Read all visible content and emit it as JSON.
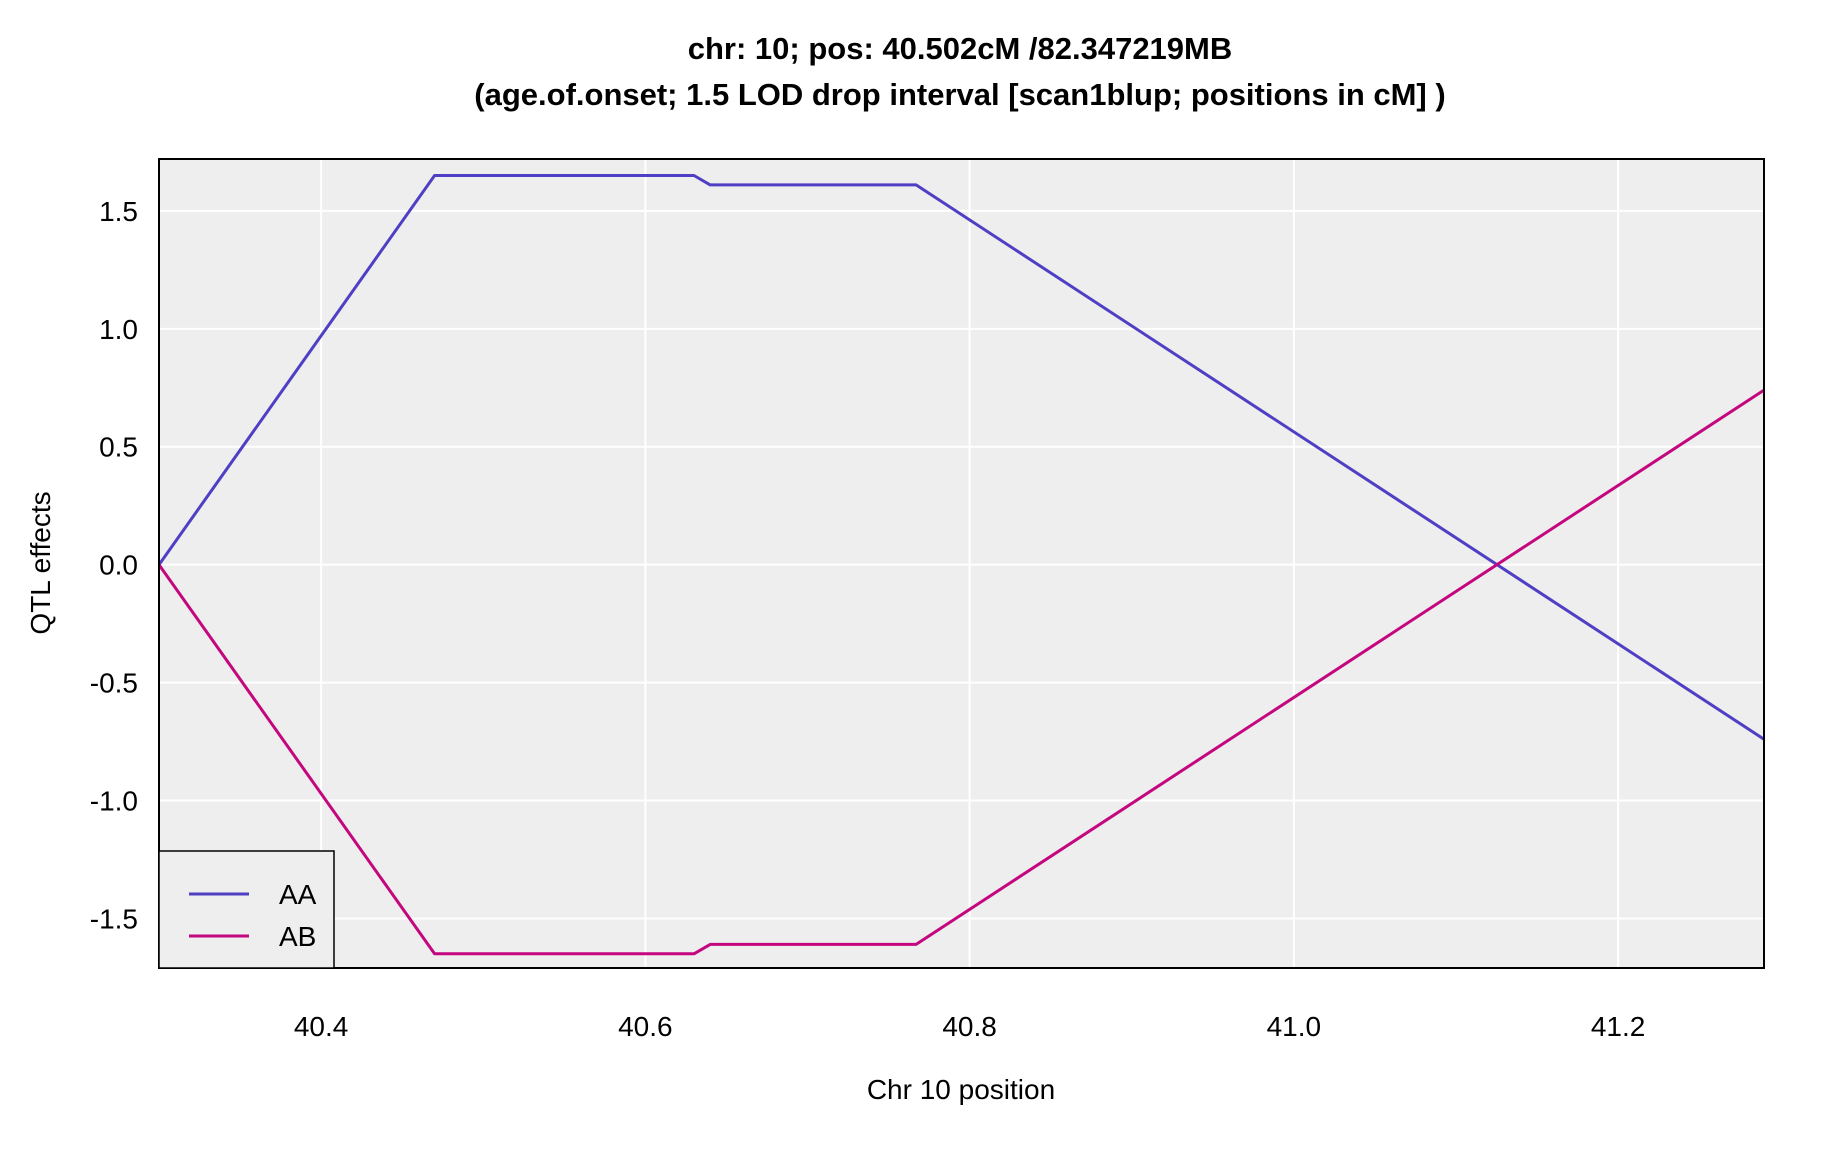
{
  "chart_data": {
    "type": "line",
    "title": "chr: 10; pos: 40.502cM /82.347219MB",
    "subtitle": "(age.of.onset; 1.5 LOD drop interval [scan1blup; positions in cM] )",
    "xlabel": "Chr 10 position",
    "ylabel": "QTL effects",
    "xlim": [
      40.3,
      41.29
    ],
    "ylim": [
      -1.71,
      1.72
    ],
    "x_ticks": [
      40.4,
      40.6,
      40.8,
      41.0,
      41.2
    ],
    "x_tick_labels": [
      "40.4",
      "40.6",
      "40.8",
      "41.0",
      "41.2"
    ],
    "y_ticks": [
      1.5,
      1.0,
      0.5,
      0.0,
      -0.5,
      -1.0,
      -1.5
    ],
    "y_tick_labels": [
      "1.5",
      "1.0",
      "0.5",
      "0.0",
      "-0.5",
      "-1.0",
      "-1.5"
    ],
    "grid": true,
    "legend_position": "bottom-left",
    "background_color": "#eeeeee",
    "series": [
      {
        "name": "AA",
        "color": "#4f3fc4",
        "x": [
          40.3,
          40.47,
          40.63,
          40.64,
          40.767,
          41.29
        ],
        "y": [
          0.0,
          1.65,
          1.65,
          1.61,
          1.61,
          -0.74
        ]
      },
      {
        "name": "AB",
        "color": "#c4077f",
        "x": [
          40.3,
          40.47,
          40.63,
          40.64,
          40.767,
          41.29
        ],
        "y": [
          0.0,
          -1.65,
          -1.65,
          -1.61,
          -1.61,
          0.74
        ]
      }
    ]
  }
}
